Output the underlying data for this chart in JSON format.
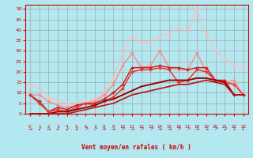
{
  "background_color": "#b3e8f0",
  "grid_color": "#999999",
  "xlabel": "Vent moyen/en rafales ( km/h )",
  "xlim": [
    -0.5,
    23.5
  ],
  "ylim": [
    0,
    52
  ],
  "yticks": [
    0,
    5,
    10,
    15,
    20,
    25,
    30,
    35,
    40,
    45,
    50
  ],
  "xticks": [
    0,
    1,
    2,
    3,
    4,
    5,
    6,
    7,
    8,
    9,
    10,
    11,
    12,
    13,
    14,
    15,
    16,
    17,
    18,
    19,
    20,
    21,
    22,
    23
  ],
  "lines": [
    {
      "comment": "lightest pink - rafales high line",
      "x": [
        0,
        1,
        2,
        3,
        4,
        5,
        6,
        7,
        8,
        9,
        10,
        11,
        12,
        13,
        14,
        15,
        16,
        17,
        18,
        19,
        20,
        21,
        22,
        23
      ],
      "y": [
        14,
        12,
        8,
        6,
        5,
        5,
        6,
        7,
        10,
        17,
        29,
        37,
        34,
        34,
        37,
        38,
        41,
        39,
        50,
        38,
        30,
        26,
        23,
        22
      ],
      "color": "#ffbbbb",
      "lw": 1.0,
      "marker": "D",
      "ms": 2.0,
      "zorder": 2
    },
    {
      "comment": "light pink - rafales lower line",
      "x": [
        0,
        1,
        2,
        3,
        4,
        5,
        6,
        7,
        8,
        9,
        10,
        11,
        12,
        13,
        14,
        15,
        16,
        17,
        18,
        19,
        20,
        21,
        22,
        23
      ],
      "y": [
        9,
        9,
        6,
        4,
        3,
        4,
        5,
        6,
        9,
        14,
        23,
        29,
        22,
        23,
        30,
        22,
        21,
        21,
        29,
        20,
        16,
        15,
        16,
        9
      ],
      "color": "#ff8888",
      "lw": 1.0,
      "marker": "D",
      "ms": 2.0,
      "zorder": 3
    },
    {
      "comment": "medium red with markers - upper",
      "x": [
        0,
        1,
        2,
        3,
        4,
        5,
        6,
        7,
        8,
        9,
        10,
        11,
        12,
        13,
        14,
        15,
        16,
        17,
        18,
        19,
        20,
        21,
        22,
        23
      ],
      "y": [
        9,
        6,
        1,
        3,
        2,
        4,
        5,
        5,
        7,
        10,
        14,
        22,
        22,
        22,
        23,
        22,
        22,
        21,
        22,
        22,
        16,
        16,
        9,
        9
      ],
      "color": "#cc2222",
      "lw": 1.1,
      "marker": "D",
      "ms": 2.0,
      "zorder": 4
    },
    {
      "comment": "medium red with markers - lower",
      "x": [
        0,
        1,
        2,
        3,
        4,
        5,
        6,
        7,
        8,
        9,
        10,
        11,
        12,
        13,
        14,
        15,
        16,
        17,
        18,
        19,
        20,
        21,
        22,
        23
      ],
      "y": [
        9,
        5,
        1,
        2,
        1,
        3,
        5,
        4,
        6,
        8,
        12,
        20,
        21,
        21,
        22,
        21,
        15,
        16,
        21,
        20,
        16,
        15,
        14,
        9
      ],
      "color": "#ee3333",
      "lw": 1.1,
      "marker": "D",
      "ms": 2.0,
      "zorder": 4
    },
    {
      "comment": "dark red smooth - upper diagonal",
      "x": [
        0,
        1,
        2,
        3,
        4,
        5,
        6,
        7,
        8,
        9,
        10,
        11,
        12,
        13,
        14,
        15,
        16,
        17,
        18,
        19,
        20,
        21,
        22,
        23
      ],
      "y": [
        0,
        0,
        0,
        1,
        1,
        2,
        3,
        4,
        6,
        7,
        9,
        11,
        13,
        14,
        15,
        16,
        16,
        16,
        17,
        17,
        16,
        15,
        9,
        9
      ],
      "color": "#990000",
      "lw": 1.4,
      "marker": null,
      "ms": 0,
      "zorder": 5
    },
    {
      "comment": "dark red smooth - lower diagonal",
      "x": [
        0,
        1,
        2,
        3,
        4,
        5,
        6,
        7,
        8,
        9,
        10,
        11,
        12,
        13,
        14,
        15,
        16,
        17,
        18,
        19,
        20,
        21,
        22,
        23
      ],
      "y": [
        0,
        0,
        0,
        0,
        0,
        1,
        2,
        3,
        4,
        5,
        7,
        9,
        10,
        11,
        12,
        13,
        14,
        14,
        15,
        16,
        15,
        14,
        9,
        9
      ],
      "color": "#bb1111",
      "lw": 1.2,
      "marker": null,
      "ms": 0,
      "zorder": 5
    }
  ],
  "wind_arrows": {
    "x": [
      0,
      1,
      2,
      3,
      4,
      5,
      6,
      7,
      8,
      9,
      10,
      11,
      12,
      13,
      14,
      15,
      16,
      17,
      18,
      19,
      20,
      21,
      22,
      23
    ],
    "symbols": [
      "→",
      "↙",
      "→",
      "↙",
      "↙",
      "↙",
      "↗",
      "↗",
      "→",
      "→",
      "↗",
      "→",
      "↗",
      "↗",
      "→",
      "→",
      "↗",
      "↗",
      "→",
      "↘",
      "↗",
      "↙",
      "↓",
      "↓"
    ],
    "color": "#cc0000",
    "fontsize": 4.5
  }
}
